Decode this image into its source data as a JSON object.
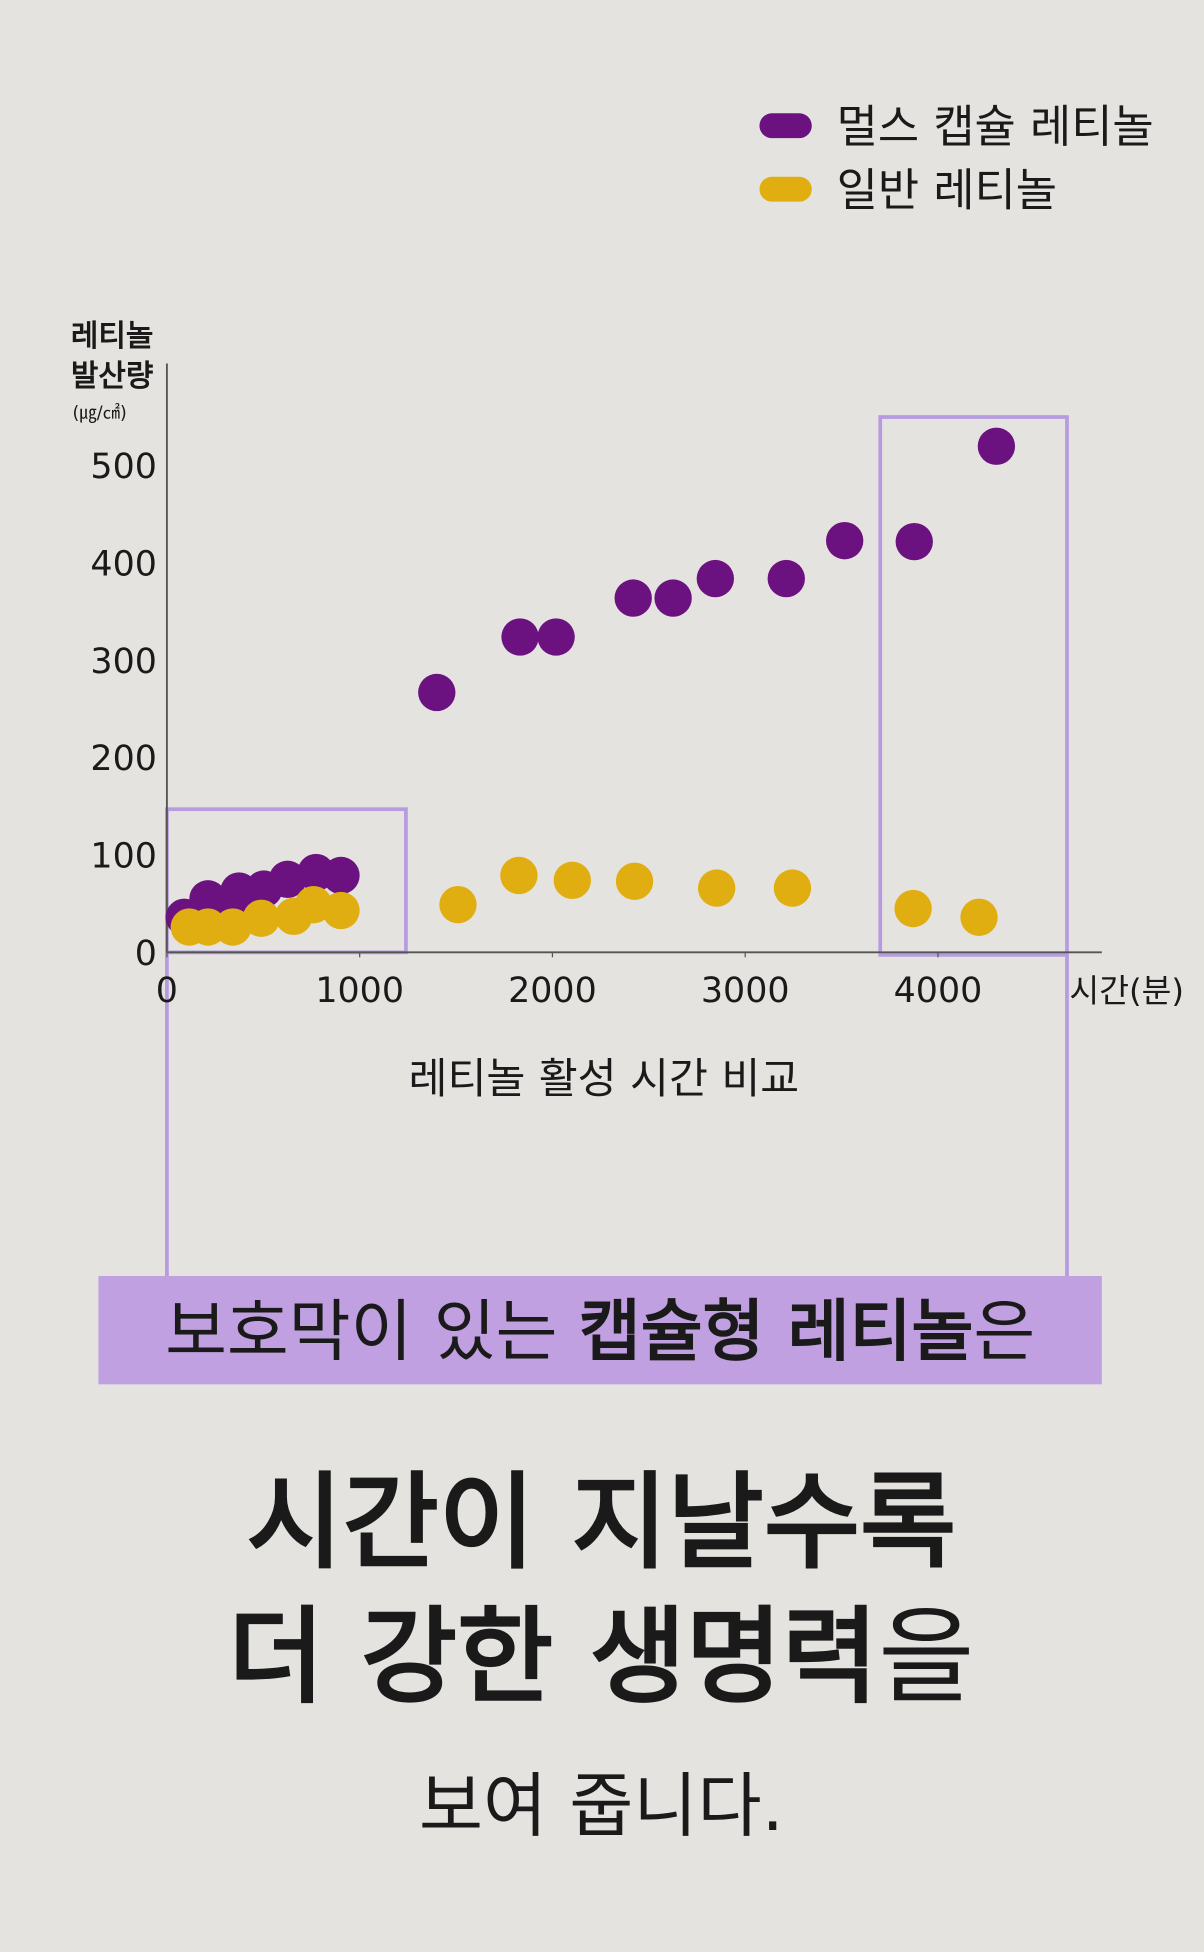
{
  "chart_data": {
    "type": "scatter",
    "caption": "레티놀 활성 시간 비교",
    "x_axis_title": "시간(분)",
    "y_axis_title": [
      "레티놀",
      "발산량"
    ],
    "y_axis_unit": "(㎍/㎠)",
    "legend": "upper right",
    "grid": false,
    "xlim": [
      0,
      4850
    ],
    "ylim": [
      0,
      605
    ],
    "xticks": [
      0,
      1000,
      2000,
      3000,
      4000
    ],
    "yticks": [
      0,
      100,
      200,
      300,
      400,
      500
    ],
    "series": [
      {
        "name": "멀스 캡슐 레티놀",
        "color": "#6b1280",
        "x": [
          90,
          213,
          342,
          374,
          503,
          626,
          774,
          903,
          1400,
          1832,
          2019,
          2419,
          2626,
          2845,
          3213,
          3516,
          3877,
          4303
        ],
        "values": [
          36,
          55,
          45,
          63,
          65,
          75,
          82,
          79,
          267,
          324,
          324,
          364,
          364,
          384,
          384,
          423,
          422,
          520
        ]
      },
      {
        "name": "일반 레티놀",
        "color": "#e0ae10",
        "x": [
          116,
          213,
          342,
          490,
          658,
          761,
          903,
          1510,
          1826,
          2103,
          2426,
          2852,
          3245,
          3871,
          4213
        ],
        "values": [
          26,
          26,
          26,
          35,
          37,
          49,
          43,
          49,
          79,
          74,
          73,
          66,
          66,
          45,
          36
        ]
      }
    ]
  },
  "text": {
    "banner": [
      "보호막이 있는 ",
      "캡슐형 레티놀",
      "은"
    ],
    "headline_1": "시간이 지날수록",
    "headline_2": [
      "더 강한 생명력",
      "을"
    ],
    "closing": "보여 줍니다."
  }
}
